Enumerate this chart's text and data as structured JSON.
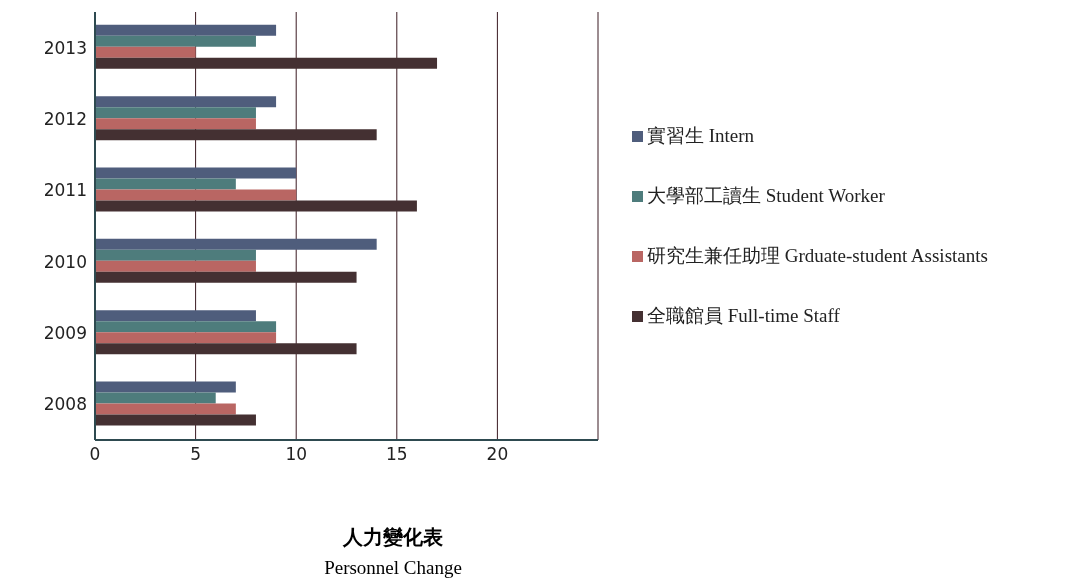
{
  "chart_data": {
    "type": "bar",
    "orientation": "horizontal",
    "title": "人力變化表",
    "subtitle": "Personnel Change",
    "categories": [
      "2013",
      "2012",
      "2011",
      "2010",
      "2009",
      "2008"
    ],
    "series": [
      {
        "name": "實習生 Intern",
        "color": "#4f5d7c",
        "values": [
          9,
          9,
          10,
          14,
          8,
          7
        ]
      },
      {
        "name": "大學部工讀生 Student Worker",
        "color": "#4e7c7c",
        "values": [
          8,
          8,
          7,
          8,
          9,
          6
        ]
      },
      {
        "name": "研究生兼任助理 Grduate-student Assistants",
        "color": "#b96663",
        "values": [
          5,
          8,
          10,
          8,
          9,
          7
        ]
      },
      {
        "name": "全職館員 Full-time Staff",
        "color": "#443032",
        "values": [
          17,
          14,
          16,
          13,
          13,
          8
        ]
      }
    ],
    "xlim": [
      0,
      25
    ],
    "xticks": [
      0,
      5,
      10,
      15,
      20
    ],
    "grid": "x",
    "legend": "right"
  }
}
